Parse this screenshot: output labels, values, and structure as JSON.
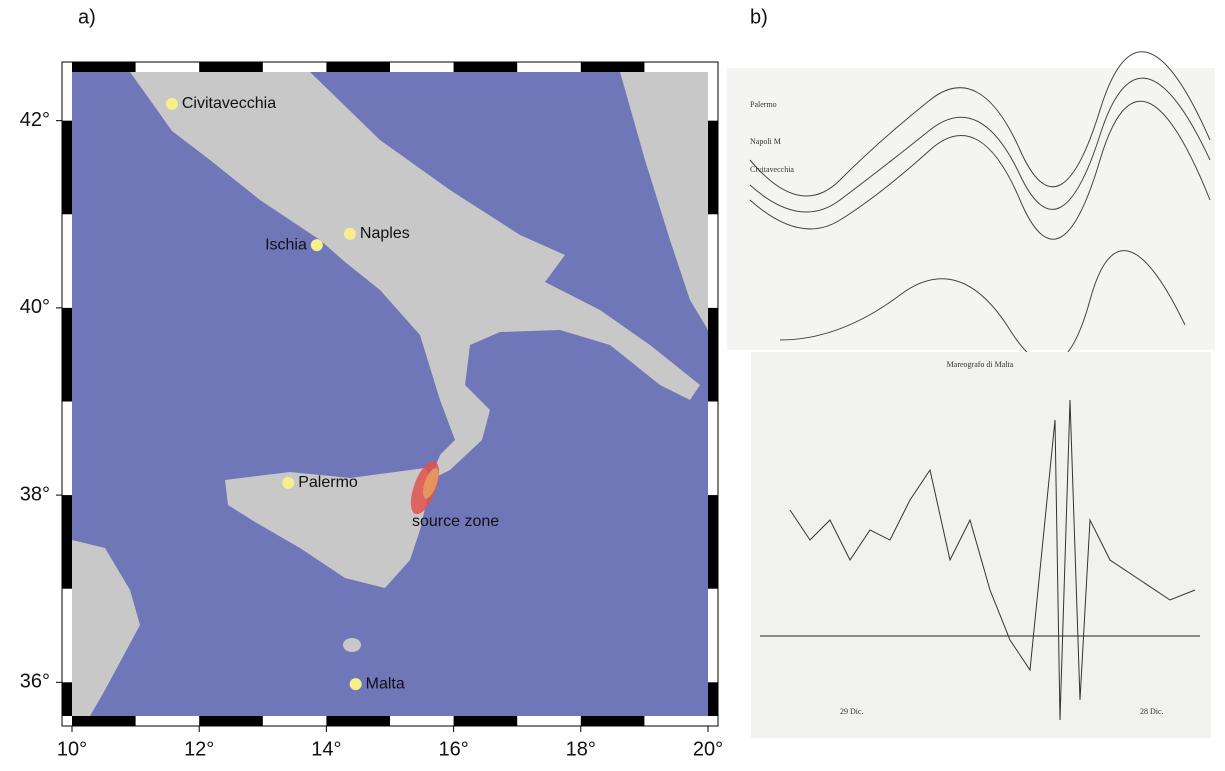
{
  "panels": {
    "a": "a)",
    "b": "b)"
  },
  "map": {
    "xlim": [
      10,
      20
    ],
    "ylim": [
      35.64,
      42.52
    ],
    "xticks": [
      {
        "value": 10,
        "label": "10°"
      },
      {
        "value": 12,
        "label": "12°"
      },
      {
        "value": 14,
        "label": "14°"
      },
      {
        "value": 16,
        "label": "16°"
      },
      {
        "value": 18,
        "label": "18°"
      },
      {
        "value": 20,
        "label": "20°"
      }
    ],
    "yticks": [
      {
        "value": 36,
        "label": "36°"
      },
      {
        "value": 38,
        "label": "38°"
      },
      {
        "value": 40,
        "label": "40°"
      },
      {
        "value": 42,
        "label": "42°"
      }
    ],
    "places": [
      {
        "name": "Civitavecchia",
        "lon": 11.57,
        "lat": 42.18
      },
      {
        "name": "Ischia",
        "lon": 13.85,
        "lat": 40.67
      },
      {
        "name": "Naples",
        "lon": 14.37,
        "lat": 40.79
      },
      {
        "name": "Palermo",
        "lon": 13.4,
        "lat": 38.13
      },
      {
        "name": "Malta",
        "lon": 14.46,
        "lat": 35.98
      }
    ],
    "source_zone": {
      "label": "source zone",
      "lon": 15.55,
      "lat": 38.08
    }
  },
  "records": {
    "top": {
      "labels": [
        "Palermo",
        "Napoli M",
        "Civitavecchia"
      ]
    },
    "bottom": {
      "title": "Mareografo di Malta",
      "dates": [
        "29 Dic.",
        "28 Dic."
      ]
    }
  }
}
